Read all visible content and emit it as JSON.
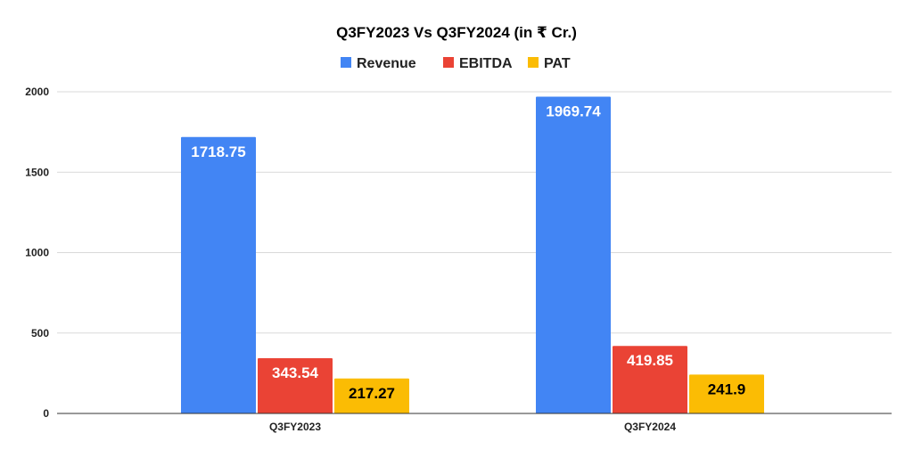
{
  "chart_data": {
    "type": "bar",
    "title": "Q3FY2023 Vs Q3FY2024 (in ₹ Cr.)",
    "xlabel": "",
    "ylabel": "",
    "categories": [
      "Q3FY2023",
      "Q3FY2024"
    ],
    "series": [
      {
        "name": "Revenue",
        "color": "#4285F4",
        "values": [
          1718.75,
          1969.74
        ],
        "labels": [
          "1718.75",
          "1969.74"
        ],
        "label_color": "#ffffff"
      },
      {
        "name": "EBITDA",
        "color": "#EA4335",
        "values": [
          343.54,
          419.85
        ],
        "labels": [
          "343.54",
          "419.85"
        ],
        "label_color": "#ffffff"
      },
      {
        "name": "PAT",
        "color": "#FBBC04",
        "values": [
          217.27,
          241.9
        ],
        "labels": [
          "217.27",
          "241.9"
        ],
        "label_color": "#000000"
      }
    ],
    "ylim": [
      0,
      2000
    ],
    "yticks": [
      0,
      500,
      1000,
      1500,
      2000
    ],
    "ytick_labels": [
      "0",
      "500",
      "1000",
      "1500",
      "2000"
    ],
    "grid": true,
    "legend_position": "top-center"
  }
}
